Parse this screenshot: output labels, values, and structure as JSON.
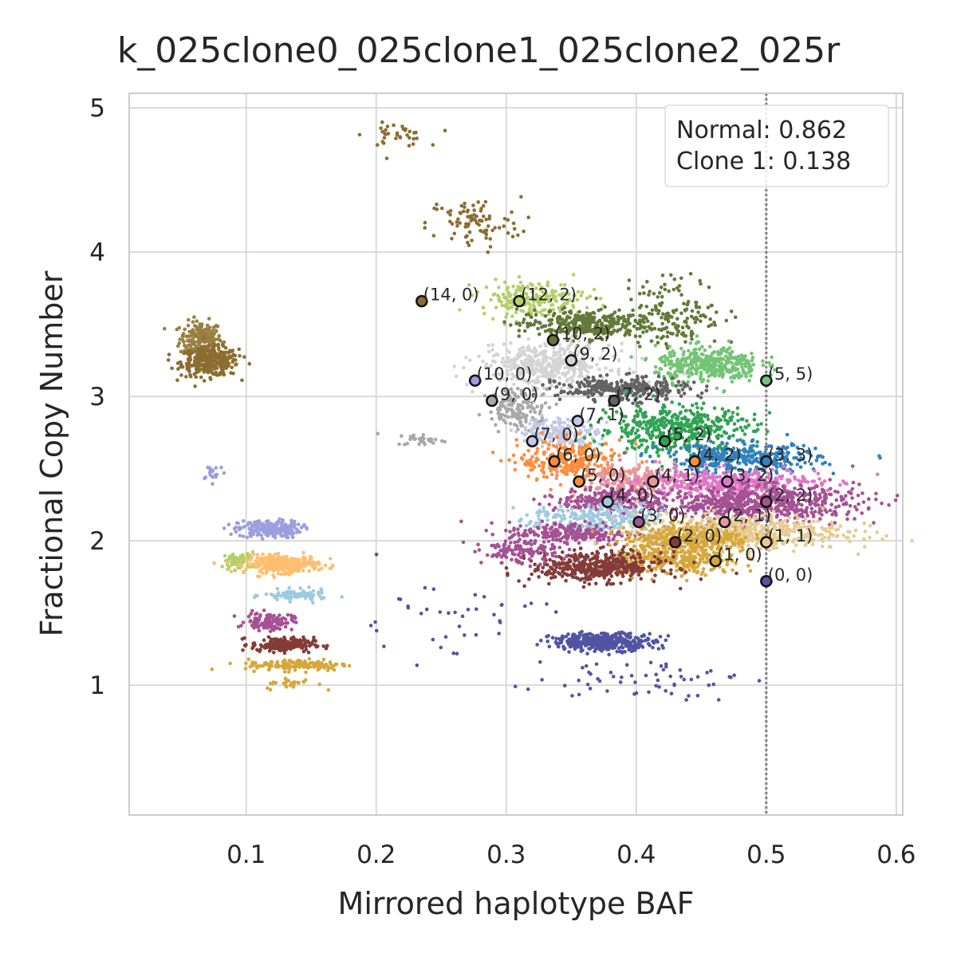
{
  "chart_data": {
    "type": "scatter",
    "title": "k_025clone0_025clone1_025clone2_025r",
    "xlabel": "Mirrored haplotype BAF",
    "ylabel": "Fractional Copy Number",
    "xlim": [
      0.01,
      0.605
    ],
    "ylim": [
      0.1,
      5.1
    ],
    "xticks": [
      "0.1",
      "0.2",
      "0.3",
      "0.4",
      "0.5",
      "0.6"
    ],
    "yticks": [
      "1",
      "2",
      "3",
      "4",
      "5"
    ],
    "grid": true,
    "reference_line_x": 0.5,
    "legend": {
      "placement": "top-right",
      "lines": [
        "Normal: 0.862",
        "Clone 1: 0.138"
      ]
    },
    "clusters": [
      {
        "x": 0.065,
        "y": 3.4,
        "sx": 0.008,
        "sy": 0.06,
        "n": 200,
        "color": "#9b7f40"
      },
      {
        "x": 0.072,
        "y": 3.24,
        "sx": 0.011,
        "sy": 0.05,
        "n": 320,
        "color": "#8c6d31"
      },
      {
        "x": 0.215,
        "y": 4.81,
        "sx": 0.012,
        "sy": 0.04,
        "n": 35,
        "color": "#8c6d31"
      },
      {
        "x": 0.275,
        "y": 4.2,
        "sx": 0.018,
        "sy": 0.09,
        "n": 90,
        "color": "#8c6d31"
      },
      {
        "x": 0.075,
        "y": 2.48,
        "sx": 0.005,
        "sy": 0.03,
        "n": 18,
        "color": "#9c9ede"
      },
      {
        "x": 0.118,
        "y": 2.08,
        "sx": 0.012,
        "sy": 0.03,
        "n": 220,
        "color": "#9c9ede"
      },
      {
        "x": 0.095,
        "y": 1.86,
        "sx": 0.006,
        "sy": 0.03,
        "n": 70,
        "color": "#b5cf6b"
      },
      {
        "x": 0.128,
        "y": 1.84,
        "sx": 0.014,
        "sy": 0.03,
        "n": 300,
        "color": "#fdbf6f"
      },
      {
        "x": 0.138,
        "y": 1.62,
        "sx": 0.012,
        "sy": 0.02,
        "n": 90,
        "color": "#9ecae1"
      },
      {
        "x": 0.118,
        "y": 1.44,
        "sx": 0.009,
        "sy": 0.03,
        "n": 110,
        "color": "#a55194"
      },
      {
        "x": 0.128,
        "y": 1.28,
        "sx": 0.012,
        "sy": 0.025,
        "n": 180,
        "color": "#843c39"
      },
      {
        "x": 0.14,
        "y": 1.14,
        "sx": 0.02,
        "sy": 0.02,
        "n": 140,
        "color": "#d6a73b"
      },
      {
        "x": 0.135,
        "y": 1.01,
        "sx": 0.01,
        "sy": 0.02,
        "n": 25,
        "color": "#d6a73b"
      },
      {
        "x": 0.235,
        "y": 2.7,
        "sx": 0.01,
        "sy": 0.02,
        "n": 30,
        "color": "#a8a8a8"
      },
      {
        "x": 0.32,
        "y": 3.68,
        "sx": 0.02,
        "sy": 0.06,
        "n": 200,
        "color": "#b5cf6b"
      },
      {
        "x": 0.36,
        "y": 3.5,
        "sx": 0.025,
        "sy": 0.05,
        "n": 320,
        "color": "#637939"
      },
      {
        "x": 0.43,
        "y": 3.58,
        "sx": 0.018,
        "sy": 0.12,
        "n": 160,
        "color": "#637939"
      },
      {
        "x": 0.455,
        "y": 3.22,
        "sx": 0.02,
        "sy": 0.06,
        "n": 380,
        "color": "#74c476"
      },
      {
        "x": 0.33,
        "y": 3.22,
        "sx": 0.025,
        "sy": 0.07,
        "n": 420,
        "color": "#d4d4d4"
      },
      {
        "x": 0.39,
        "y": 3.05,
        "sx": 0.025,
        "sy": 0.04,
        "n": 300,
        "color": "#636363"
      },
      {
        "x": 0.31,
        "y": 2.92,
        "sx": 0.012,
        "sy": 0.07,
        "n": 150,
        "color": "#a8a8a8"
      },
      {
        "x": 0.34,
        "y": 2.75,
        "sx": 0.015,
        "sy": 0.05,
        "n": 180,
        "color": "#c6c8e8"
      },
      {
        "x": 0.43,
        "y": 2.78,
        "sx": 0.03,
        "sy": 0.08,
        "n": 450,
        "color": "#31a354"
      },
      {
        "x": 0.35,
        "y": 2.55,
        "sx": 0.02,
        "sy": 0.07,
        "n": 260,
        "color": "#fd8d3c"
      },
      {
        "x": 0.48,
        "y": 2.57,
        "sx": 0.03,
        "sy": 0.05,
        "n": 380,
        "color": "#3182bd"
      },
      {
        "x": 0.4,
        "y": 2.42,
        "sx": 0.02,
        "sy": 0.05,
        "n": 220,
        "color": "#e7969c"
      },
      {
        "x": 0.47,
        "y": 2.4,
        "sx": 0.035,
        "sy": 0.05,
        "n": 420,
        "color": "#de77c6"
      },
      {
        "x": 0.49,
        "y": 2.26,
        "sx": 0.04,
        "sy": 0.06,
        "n": 650,
        "color": "#a55194"
      },
      {
        "x": 0.38,
        "y": 2.28,
        "sx": 0.02,
        "sy": 0.04,
        "n": 250,
        "color": "#a55194"
      },
      {
        "x": 0.37,
        "y": 2.15,
        "sx": 0.025,
        "sy": 0.05,
        "n": 250,
        "color": "#9ecae1"
      },
      {
        "x": 0.35,
        "y": 2.05,
        "sx": 0.025,
        "sy": 0.04,
        "n": 240,
        "color": "#a55194"
      },
      {
        "x": 0.48,
        "y": 2.06,
        "sx": 0.04,
        "sy": 0.06,
        "n": 550,
        "color": "#e7cb94"
      },
      {
        "x": 0.44,
        "y": 2.02,
        "sx": 0.025,
        "sy": 0.05,
        "n": 320,
        "color": "#d6a73b"
      },
      {
        "x": 0.43,
        "y": 1.86,
        "sx": 0.025,
        "sy": 0.05,
        "n": 300,
        "color": "#d6a73b"
      },
      {
        "x": 0.37,
        "y": 1.82,
        "sx": 0.025,
        "sy": 0.05,
        "n": 460,
        "color": "#843c39"
      },
      {
        "x": 0.31,
        "y": 1.92,
        "sx": 0.015,
        "sy": 0.04,
        "n": 110,
        "color": "#a55194"
      },
      {
        "x": 0.375,
        "y": 1.3,
        "sx": 0.02,
        "sy": 0.03,
        "n": 380,
        "color": "#5254a3"
      },
      {
        "x": 0.4,
        "y": 1.05,
        "sx": 0.04,
        "sy": 0.07,
        "n": 60,
        "color": "#5254a3"
      },
      {
        "x": 0.25,
        "y": 1.45,
        "sx": 0.04,
        "sy": 0.15,
        "n": 40,
        "color": "#5254a3"
      }
    ],
    "states": [
      {
        "label": "(14, 0)",
        "x": 0.235,
        "y": 3.66,
        "color": "#8c6d31"
      },
      {
        "label": "(12, 2)",
        "x": 0.31,
        "y": 3.66,
        "color": "#b5cf6b"
      },
      {
        "label": "(10, 2)",
        "x": 0.336,
        "y": 3.39,
        "color": "#637939"
      },
      {
        "label": "(9, 2)",
        "x": 0.35,
        "y": 3.25,
        "color": "#d4d4d4"
      },
      {
        "label": "(10, 0)",
        "x": 0.276,
        "y": 3.11,
        "color": "#9c9ede"
      },
      {
        "label": "(5, 5)",
        "x": 0.5,
        "y": 3.11,
        "color": "#74c476"
      },
      {
        "label": "(9, 0)",
        "x": 0.289,
        "y": 2.97,
        "color": "#a8a8a8"
      },
      {
        "label": "(7, 2)",
        "x": 0.383,
        "y": 2.97,
        "color": "#636363"
      },
      {
        "label": "(7, 1)",
        "x": 0.355,
        "y": 2.83,
        "color": "#c6c8e8"
      },
      {
        "label": "(7, 0)",
        "x": 0.32,
        "y": 2.69,
        "color": "#c6c8e8"
      },
      {
        "label": "(5, 2)",
        "x": 0.422,
        "y": 2.69,
        "color": "#31a354"
      },
      {
        "label": "(6, 0)",
        "x": 0.337,
        "y": 2.55,
        "color": "#fd8d3c"
      },
      {
        "label": "(4, 2)",
        "x": 0.445,
        "y": 2.55,
        "color": "#fd8d3c"
      },
      {
        "label": "(3, 3)",
        "x": 0.5,
        "y": 2.55,
        "color": "#3182bd"
      },
      {
        "label": "(5, 0)",
        "x": 0.356,
        "y": 2.41,
        "color": "#fd8d3c"
      },
      {
        "label": "(4, 1)",
        "x": 0.413,
        "y": 2.41,
        "color": "#e7969c"
      },
      {
        "label": "(3, 2)",
        "x": 0.47,
        "y": 2.41,
        "color": "#de77c6"
      },
      {
        "label": "(4, 0)",
        "x": 0.378,
        "y": 2.27,
        "color": "#9ecae1"
      },
      {
        "label": "(2, 2)",
        "x": 0.5,
        "y": 2.27,
        "color": "#a55194"
      },
      {
        "label": "(3, 0)",
        "x": 0.402,
        "y": 2.13,
        "color": "#a55194"
      },
      {
        "label": "(2, 1)",
        "x": 0.468,
        "y": 2.13,
        "color": "#e7969c"
      },
      {
        "label": "(2, 0)",
        "x": 0.43,
        "y": 1.99,
        "color": "#843c39"
      },
      {
        "label": "(1, 1)",
        "x": 0.5,
        "y": 1.99,
        "color": "#e7cb94"
      },
      {
        "label": "(1, 0)",
        "x": 0.461,
        "y": 1.86,
        "color": "#d6a73b"
      },
      {
        "label": "(0, 0)",
        "x": 0.5,
        "y": 1.72,
        "color": "#5254a3"
      }
    ]
  }
}
